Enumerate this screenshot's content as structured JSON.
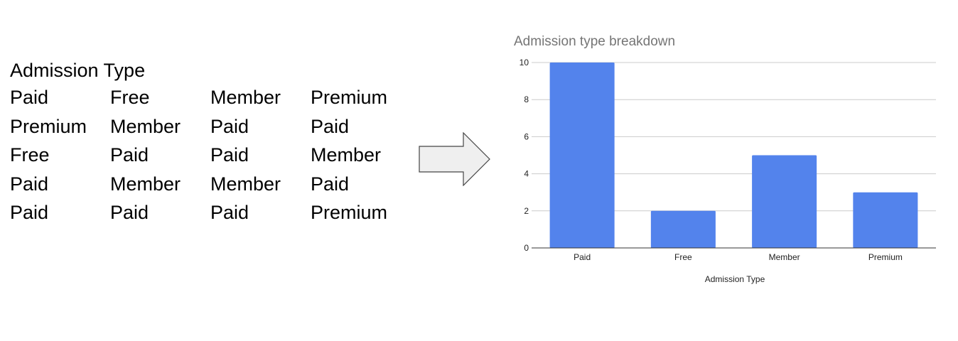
{
  "table": {
    "header": "Admission Type",
    "rows": [
      [
        "Paid",
        "Free",
        "Member",
        "Premium"
      ],
      [
        "Premium",
        "Member",
        "Paid",
        "Paid"
      ],
      [
        "Free",
        "Paid",
        "Paid",
        "Member"
      ],
      [
        "Paid",
        "Member",
        "Member",
        "Paid"
      ],
      [
        "Paid",
        "Paid",
        "Paid",
        "Premium"
      ]
    ]
  },
  "arrow_icon": "right-arrow-icon",
  "chart_data": {
    "type": "bar",
    "title": "Admission type breakdown",
    "xlabel": "Admission Type",
    "ylabel": "",
    "categories": [
      "Paid",
      "Free",
      "Member",
      "Premium"
    ],
    "values": [
      10,
      2,
      5,
      3
    ],
    "ylim": [
      0,
      10
    ],
    "yticks": [
      0,
      2,
      4,
      6,
      8,
      10
    ],
    "grid": true,
    "legend": "none",
    "bar_color": "#5383EC",
    "title_color": "#757575",
    "grid_color": "#CCCCCC"
  }
}
